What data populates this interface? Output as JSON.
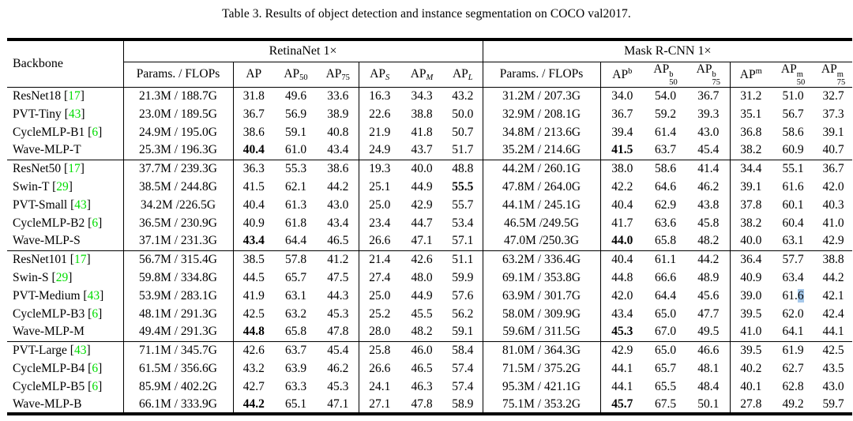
{
  "title": "Table 3. Results of object detection and instance segmentation on COCO val2017.",
  "colors": {
    "citation_green": "#00dd00",
    "highlight_blue": "#a6c8ea"
  },
  "table": {
    "backbone_header": "Backbone",
    "group_headers": [
      "RetinaNet 1×",
      "Mask R-CNN 1×"
    ],
    "subheaders": [
      {
        "base": "Params. / FLOPs"
      },
      {
        "base": "AP"
      },
      {
        "base": "AP",
        "sub": "50"
      },
      {
        "base": "AP",
        "sub": "75"
      },
      {
        "base": "AP",
        "sub": "S",
        "it": true
      },
      {
        "base": "AP",
        "sub": "M",
        "it": true
      },
      {
        "base": "AP",
        "sub": "L",
        "it": true
      },
      {
        "base": "Params. / FLOPs"
      },
      {
        "base": "AP",
        "sup": "b"
      },
      {
        "base": "AP",
        "sup": "b",
        "sub": "50"
      },
      {
        "base": "AP",
        "sup": "b",
        "sub": "75"
      },
      {
        "base": "AP",
        "sup": "m"
      },
      {
        "base": "AP",
        "sup": "m",
        "sub": "50"
      },
      {
        "base": "AP",
        "sup": "m",
        "sub": "75"
      }
    ],
    "blocks": [
      {
        "rows": [
          {
            "name": "ResNet18",
            "cite": "17",
            "r": {
              "p": "21.3M / 188.7G",
              "v": [
                "31.8",
                "49.6",
                "33.6",
                "16.3",
                "34.3",
                "43.2"
              ],
              "b": []
            },
            "m": {
              "p": "31.2M / 207.3G",
              "v": [
                "34.0",
                "54.0",
                "36.7",
                "31.2",
                "51.0",
                "32.7"
              ],
              "b": []
            }
          },
          {
            "name": "PVT-Tiny",
            "cite": "43",
            "r": {
              "p": "23.0M / 189.5G",
              "v": [
                "36.7",
                "56.9",
                "38.9",
                "22.6",
                "38.8",
                "50.0"
              ],
              "b": []
            },
            "m": {
              "p": "32.9M / 208.1G",
              "v": [
                "36.7",
                "59.2",
                "39.3",
                "35.1",
                "56.7",
                "37.3"
              ],
              "b": []
            }
          },
          {
            "name": "CycleMLP-B1",
            "cite": "6",
            "r": {
              "p": "24.9M / 195.0G",
              "v": [
                "38.6",
                "59.1",
                "40.8",
                "21.9",
                "41.8",
                "50.7"
              ],
              "b": []
            },
            "m": {
              "p": "34.8M / 213.6G",
              "v": [
                "39.4",
                "61.4",
                "43.0",
                "36.8",
                "58.6",
                "39.1"
              ],
              "b": []
            }
          },
          {
            "name": "Wave-MLP-T",
            "r": {
              "p": "25.3M / 196.3G",
              "v": [
                "40.4",
                "61.0",
                "43.4",
                "24.9",
                "43.7",
                "51.7"
              ],
              "b": [
                0
              ]
            },
            "m": {
              "p": "35.2M / 214.6G",
              "v": [
                "41.5",
                "63.7",
                "45.4",
                "38.2",
                "60.9",
                "40.7"
              ],
              "b": [
                0
              ]
            }
          }
        ]
      },
      {
        "rows": [
          {
            "name": "ResNet50",
            "cite": "17",
            "r": {
              "p": "37.7M / 239.3G",
              "v": [
                "36.3",
                "55.3",
                "38.6",
                "19.3",
                "40.0",
                "48.8"
              ],
              "b": []
            },
            "m": {
              "p": "44.2M / 260.1G",
              "v": [
                "38.0",
                "58.6",
                "41.4",
                "34.4",
                "55.1",
                "36.7"
              ],
              "b": []
            }
          },
          {
            "name": "Swin-T",
            "cite": "29",
            "r": {
              "p": "38.5M / 244.8G",
              "v": [
                "41.5",
                "62.1",
                "44.2",
                "25.1",
                "44.9",
                "55.5"
              ],
              "b": [
                5
              ]
            },
            "m": {
              "p": "47.8M / 264.0G",
              "v": [
                "42.2",
                "64.6",
                "46.2",
                "39.1",
                "61.6",
                "42.0"
              ],
              "b": []
            }
          },
          {
            "name": "PVT-Small",
            "cite": "43",
            "r": {
              "p": "34.2M /226.5G",
              "v": [
                "40.4",
                "61.3",
                "43.0",
                "25.0",
                "42.9",
                "55.7"
              ],
              "b": []
            },
            "m": {
              "p": "44.1M / 245.1G",
              "v": [
                "40.4",
                "62.9",
                "43.8",
                "37.8",
                "60.1",
                "40.3"
              ],
              "b": []
            }
          },
          {
            "name": "CycleMLP-B2",
            "cite": "6",
            "r": {
              "p": "36.5M / 230.9G",
              "v": [
                "40.9",
                "61.8",
                "43.4",
                "23.4",
                "44.7",
                "53.4"
              ],
              "b": []
            },
            "m": {
              "p": "46.5M /249.5G",
              "v": [
                "41.7",
                "63.6",
                "45.8",
                "38.2",
                "60.4",
                "41.0"
              ],
              "b": []
            }
          },
          {
            "name": "Wave-MLP-S",
            "r": {
              "p": "37.1M / 231.3G",
              "v": [
                "43.4",
                "64.4",
                "46.5",
                "26.6",
                "47.1",
                "57.1"
              ],
              "b": [
                0
              ]
            },
            "m": {
              "p": "47.0M /250.3G",
              "v": [
                "44.0",
                "65.8",
                "48.2",
                "40.0",
                "63.1",
                "42.9"
              ],
              "b": [
                0
              ]
            }
          }
        ]
      },
      {
        "rows": [
          {
            "name": "ResNet101",
            "cite": "17",
            "r": {
              "p": "56.7M / 315.4G",
              "v": [
                "38.5",
                "57.8",
                "41.2",
                "21.4",
                "42.6",
                "51.1"
              ],
              "b": []
            },
            "m": {
              "p": "63.2M / 336.4G",
              "v": [
                "40.4",
                "61.1",
                "44.2",
                "36.4",
                "57.7",
                "38.8"
              ],
              "b": []
            }
          },
          {
            "name": "Swin-S",
            "cite": "29",
            "r": {
              "p": "59.8M / 334.8G",
              "v": [
                "44.5",
                "65.7",
                "47.5",
                "27.4",
                "48.0",
                "59.9"
              ],
              "b": []
            },
            "m": {
              "p": "69.1M / 353.8G",
              "v": [
                "44.8",
                "66.6",
                "48.9",
                "40.9",
                "63.4",
                "44.2"
              ],
              "b": []
            }
          },
          {
            "name": "PVT-Medium",
            "cite": "43",
            "r": {
              "p": "53.9M / 283.1G",
              "v": [
                "41.9",
                "63.1",
                "44.3",
                "25.0",
                "44.9",
                "57.6"
              ],
              "b": []
            },
            "m": {
              "p": "63.9M / 301.7G",
              "v": [
                "42.0",
                "64.4",
                "45.6",
                "39.0",
                "61.6",
                "42.1"
              ],
              "b": [],
              "hl": 4
            }
          },
          {
            "name": "CycleMLP-B3",
            "cite": "6",
            "r": {
              "p": "48.1M / 291.3G",
              "v": [
                "42.5",
                "63.2",
                "45.3",
                "25.2",
                "45.5",
                "56.2"
              ],
              "b": []
            },
            "m": {
              "p": "58.0M / 309.9G",
              "v": [
                "43.4",
                "65.0",
                "47.7",
                "39.5",
                "62.0",
                "42.4"
              ],
              "b": []
            }
          },
          {
            "name": "Wave-MLP-M",
            "r": {
              "p": "49.4M / 291.3G",
              "v": [
                "44.8",
                "65.8",
                "47.8",
                "28.0",
                "48.2",
                "59.1"
              ],
              "b": [
                0
              ]
            },
            "m": {
              "p": "59.6M / 311.5G",
              "v": [
                "45.3",
                "67.0",
                "49.5",
                "41.0",
                "64.1",
                "44.1"
              ],
              "b": [
                0
              ]
            }
          }
        ]
      },
      {
        "rows": [
          {
            "name": "PVT-Large",
            "cite": "43",
            "r": {
              "p": "71.1M / 345.7G",
              "v": [
                "42.6",
                "63.7",
                "45.4",
                "25.8",
                "46.0",
                "58.4"
              ],
              "b": []
            },
            "m": {
              "p": "81.0M / 364.3G",
              "v": [
                "42.9",
                "65.0",
                "46.6",
                "39.5",
                "61.9",
                "42.5"
              ],
              "b": []
            }
          },
          {
            "name": "CycleMLP-B4",
            "cite": "6",
            "r": {
              "p": "61.5M / 356.6G",
              "v": [
                "43.2",
                "63.9",
                "46.2",
                "26.6",
                "46.5",
                "57.4"
              ],
              "b": []
            },
            "m": {
              "p": "71.5M / 375.2G",
              "v": [
                "44.1",
                "65.7",
                "48.1",
                "40.2",
                "62.7",
                "43.5"
              ],
              "b": []
            }
          },
          {
            "name": "CycleMLP-B5",
            "cite": "6",
            "r": {
              "p": "85.9M / 402.2G",
              "v": [
                "42.7",
                "63.3",
                "45.3",
                "24.1",
                "46.3",
                "57.4"
              ],
              "b": []
            },
            "m": {
              "p": "95.3M / 421.1G",
              "v": [
                "44.1",
                "65.5",
                "48.4",
                "40.1",
                "62.8",
                "43.0"
              ],
              "b": []
            }
          },
          {
            "name": "Wave-MLP-B",
            "r": {
              "p": "66.1M / 333.9G",
              "v": [
                "44.2",
                "65.1",
                "47.1",
                "27.1",
                "47.8",
                "58.9"
              ],
              "b": [
                0
              ]
            },
            "m": {
              "p": "75.1M / 353.2G",
              "v": [
                "45.7",
                "67.5",
                "50.1",
                "27.8",
                "49.2",
                "59.7"
              ],
              "b": [
                0
              ]
            }
          }
        ]
      }
    ]
  }
}
